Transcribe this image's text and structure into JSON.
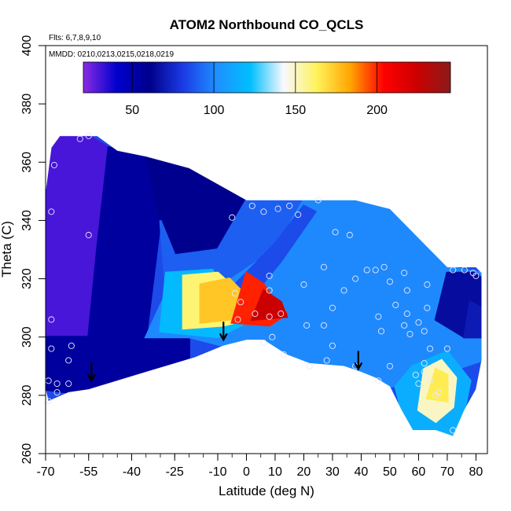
{
  "chart_data": {
    "type": "heatmap",
    "title": "ATOM2 Northbound CO_QCLS",
    "flights_label": "Flts: 6,7,8,9,10",
    "dates_label": "MMDD: 0210,0213,0215,0218,0219",
    "xlabel": "Latitude (deg N)",
    "ylabel": "Theta (C)",
    "xlim": [
      -70,
      84
    ],
    "ylim": [
      260,
      400
    ],
    "x_ticks": [
      "-70",
      "-55",
      "-40",
      "-25",
      "-10",
      "0",
      "10",
      "20",
      "30",
      "40",
      "50",
      "60",
      "70",
      "80"
    ],
    "x_tick_values": [
      -70,
      -55,
      -40,
      -25,
      -10,
      0,
      10,
      20,
      30,
      40,
      50,
      60,
      70,
      80
    ],
    "x_minor_step": 5,
    "y_ticks": [
      "260",
      "280",
      "300",
      "320",
      "340",
      "360",
      "380",
      "400"
    ],
    "y_tick_values": [
      260,
      280,
      300,
      320,
      340,
      360,
      380,
      400
    ],
    "colorbar": {
      "range": [
        20,
        245
      ],
      "ticks": [
        "50",
        "100",
        "150",
        "200"
      ],
      "tick_values": [
        50,
        100,
        150,
        200
      ],
      "colors": [
        "#8a2be2",
        "#0000cd",
        "#00008b",
        "#1c3ce6",
        "#1e90ff",
        "#00bfff",
        "#f8f8ff",
        "#fff35a",
        "#ffa500",
        "#ff0000",
        "#cc0000",
        "#8b1a1a"
      ]
    },
    "arrows": [
      {
        "lat": -54,
        "theta": 288
      },
      {
        "lat": -8,
        "theta": 302
      },
      {
        "lat": 39,
        "theta": 292
      }
    ],
    "domain_outline": [
      [
        -69,
        278
      ],
      [
        -62,
        281
      ],
      [
        -55,
        282
      ],
      [
        -35,
        288
      ],
      [
        -18,
        293
      ],
      [
        -8,
        297
      ],
      [
        0,
        299
      ],
      [
        6,
        299
      ],
      [
        14,
        294
      ],
      [
        22,
        291
      ],
      [
        34,
        290
      ],
      [
        40,
        288
      ],
      [
        45,
        286
      ],
      [
        50,
        283
      ],
      [
        54,
        275
      ],
      [
        58,
        268
      ],
      [
        66,
        268
      ],
      [
        72,
        266
      ],
      [
        76,
        275
      ],
      [
        80,
        282
      ],
      [
        82,
        292
      ],
      [
        82,
        300
      ],
      [
        82,
        322
      ],
      [
        80,
        324
      ],
      [
        70,
        324
      ],
      [
        60,
        334
      ],
      [
        50,
        344
      ],
      [
        38,
        347
      ],
      [
        20,
        347
      ],
      [
        0,
        347
      ],
      [
        -20,
        358
      ],
      [
        -35,
        362
      ],
      [
        -45,
        364
      ],
      [
        -52,
        369
      ],
      [
        -65,
        369
      ],
      [
        -68,
        365
      ],
      [
        -70,
        350
      ],
      [
        -70,
        330
      ],
      [
        -70,
        300
      ],
      [
        -70,
        282
      ]
    ],
    "regions": [
      {
        "value": 30,
        "polygon": [
          [
            -70,
            300
          ],
          [
            -70,
            369
          ],
          [
            -55,
            369
          ],
          [
            -48,
            365
          ],
          [
            -52,
            330
          ],
          [
            -55,
            300
          ]
        ]
      },
      {
        "value": 55,
        "polygon": [
          [
            -55,
            300
          ],
          [
            -52,
            330
          ],
          [
            -48,
            365
          ],
          [
            -35,
            363
          ],
          [
            -30,
            340
          ],
          [
            -35,
            300
          ]
        ]
      },
      {
        "value": 55,
        "polygon": [
          [
            -70,
            282
          ],
          [
            -62,
            281
          ],
          [
            -55,
            282
          ],
          [
            -35,
            288
          ],
          [
            -20,
            293
          ],
          [
            -20,
            300
          ],
          [
            -70,
            300
          ]
        ]
      },
      {
        "value": 60,
        "polygon": [
          [
            -35,
            363
          ],
          [
            -20,
            358
          ],
          [
            0,
            347
          ],
          [
            -10,
            330
          ],
          [
            -25,
            328
          ],
          [
            -30,
            340
          ]
        ]
      },
      {
        "value": 90,
        "polygon": [
          [
            -30,
            340
          ],
          [
            -25,
            328
          ],
          [
            -10,
            330
          ],
          [
            0,
            347
          ],
          [
            20,
            347
          ],
          [
            10,
            330
          ],
          [
            -5,
            320
          ],
          [
            -28,
            315
          ]
        ]
      },
      {
        "value": 100,
        "polygon": [
          [
            -35,
            300
          ],
          [
            -28,
            315
          ],
          [
            -5,
            320
          ],
          [
            10,
            330
          ],
          [
            20,
            347
          ],
          [
            38,
            347
          ],
          [
            50,
            344
          ],
          [
            60,
            334
          ],
          [
            70,
            324
          ],
          [
            82,
            322
          ],
          [
            82,
            292
          ],
          [
            76,
            290
          ],
          [
            60,
            285
          ],
          [
            50,
            283
          ],
          [
            40,
            288
          ],
          [
            22,
            291
          ],
          [
            14,
            294
          ],
          [
            6,
            299
          ],
          [
            -8,
            297
          ],
          [
            -20,
            300
          ]
        ]
      },
      {
        "value": 120,
        "polygon": [
          [
            -30,
            302
          ],
          [
            -28,
            322
          ],
          [
            -12,
            323
          ],
          [
            -5,
            315
          ],
          [
            0,
            305
          ],
          [
            -10,
            300
          ]
        ]
      },
      {
        "value": 85,
        "polygon": [
          [
            -4,
            318
          ],
          [
            10,
            332
          ],
          [
            20,
            345
          ],
          [
            24,
            343
          ],
          [
            12,
            326
          ],
          [
            2,
            314
          ]
        ]
      },
      {
        "value": 160,
        "polygon": [
          [
            -22,
            303
          ],
          [
            -22,
            321
          ],
          [
            -10,
            322
          ],
          [
            -2,
            315
          ],
          [
            4,
            307
          ],
          [
            -8,
            304
          ]
        ]
      },
      {
        "value": 175,
        "polygon": [
          [
            -16,
            305
          ],
          [
            -16,
            318
          ],
          [
            -6,
            320
          ],
          [
            0,
            314
          ],
          [
            2,
            307
          ]
        ]
      },
      {
        "value": 200,
        "polygon": [
          [
            -5,
            305
          ],
          [
            0,
            322
          ],
          [
            6,
            318
          ],
          [
            10,
            312
          ],
          [
            14,
            308
          ],
          [
            8,
            304
          ]
        ]
      },
      {
        "value": 225,
        "polygon": [
          [
            2,
            306
          ],
          [
            6,
            316
          ],
          [
            12,
            312
          ],
          [
            14,
            307
          ]
        ]
      },
      {
        "value": 115,
        "polygon": [
          [
            54,
            275
          ],
          [
            58,
            268
          ],
          [
            66,
            268
          ],
          [
            72,
            266
          ],
          [
            76,
            275
          ],
          [
            78,
            285
          ],
          [
            70,
            295
          ],
          [
            58,
            290
          ],
          [
            52,
            283
          ]
        ]
      },
      {
        "value": 150,
        "polygon": [
          [
            60,
            275
          ],
          [
            62,
            289
          ],
          [
            68,
            292
          ],
          [
            73,
            286
          ],
          [
            72,
            276
          ],
          [
            66,
            271
          ]
        ]
      },
      {
        "value": 165,
        "polygon": [
          [
            63,
            279
          ],
          [
            66,
            289
          ],
          [
            70,
            287
          ],
          [
            70,
            278
          ]
        ]
      },
      {
        "value": 65,
        "polygon": [
          [
            66,
            306
          ],
          [
            70,
            322
          ],
          [
            80,
            322
          ],
          [
            82,
            320
          ],
          [
            82,
            300
          ],
          [
            76,
            300
          ]
        ]
      },
      {
        "value": 70,
        "polygon": [
          [
            76,
            300
          ],
          [
            82,
            300
          ],
          [
            82,
            310
          ],
          [
            78,
            312
          ]
        ]
      }
    ],
    "samples": [
      [
        -55,
        369
      ],
      [
        -58,
        368
      ],
      [
        -67,
        359
      ],
      [
        -68,
        343
      ],
      [
        -55,
        335
      ],
      [
        -68,
        306
      ],
      [
        -61,
        297
      ],
      [
        -68,
        296
      ],
      [
        -62,
        292
      ],
      [
        -69,
        285
      ],
      [
        -66,
        284
      ],
      [
        -62,
        284
      ],
      [
        -66,
        281
      ],
      [
        -69,
        278
      ],
      [
        -5,
        341
      ],
      [
        2,
        345
      ],
      [
        6,
        343
      ],
      [
        11,
        344
      ],
      [
        15,
        345
      ],
      [
        18,
        342
      ],
      [
        25,
        347
      ],
      [
        -4,
        315
      ],
      [
        8,
        316
      ],
      [
        -2,
        312
      ],
      [
        8,
        307
      ],
      [
        3,
        308
      ],
      [
        12,
        308
      ],
      [
        -3,
        306
      ],
      [
        9,
        300
      ],
      [
        6,
        298
      ],
      [
        8,
        321
      ],
      [
        20,
        318
      ],
      [
        13,
        294
      ],
      [
        21,
        304
      ],
      [
        27,
        304
      ],
      [
        22,
        290
      ],
      [
        28,
        292
      ],
      [
        30,
        297
      ],
      [
        27,
        324
      ],
      [
        31,
        336
      ],
      [
        36,
        335
      ],
      [
        30,
        310
      ],
      [
        34,
        316
      ],
      [
        38,
        320
      ],
      [
        42,
        323
      ],
      [
        45,
        323
      ],
      [
        48,
        324
      ],
      [
        38,
        290
      ],
      [
        50,
        319
      ],
      [
        52,
        311
      ],
      [
        56,
        316
      ],
      [
        55,
        322
      ],
      [
        63,
        310
      ],
      [
        63,
        318
      ],
      [
        64,
        296
      ],
      [
        62,
        291
      ],
      [
        62,
        288
      ],
      [
        59,
        287
      ],
      [
        55,
        304
      ],
      [
        56,
        308
      ],
      [
        57,
        301
      ],
      [
        60,
        305
      ],
      [
        62,
        302
      ],
      [
        60,
        284
      ],
      [
        64,
        285
      ],
      [
        66,
        280
      ],
      [
        67,
        281
      ],
      [
        70,
        296
      ],
      [
        72,
        323
      ],
      [
        76,
        323
      ],
      [
        79,
        322
      ],
      [
        80,
        321
      ],
      [
        46,
        307
      ],
      [
        47,
        302
      ],
      [
        46,
        285
      ],
      [
        50,
        290
      ],
      [
        72,
        268
      ]
    ]
  }
}
